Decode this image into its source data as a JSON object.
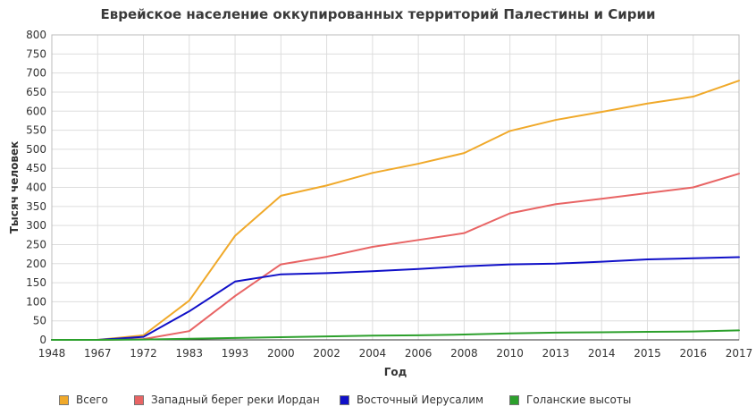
{
  "chart_data": {
    "type": "line",
    "title": "Еврейское население оккупированных территорий Палестины и Сирии",
    "xlabel": "Год",
    "ylabel": "Тысяч человек",
    "categories": [
      "1948",
      "1967",
      "1972",
      "1983",
      "1993",
      "2000",
      "2002",
      "2004",
      "2006",
      "2008",
      "2010",
      "2013",
      "2014",
      "2015",
      "2016",
      "2017"
    ],
    "ylim": [
      0,
      800
    ],
    "yticks": [
      0,
      50,
      100,
      150,
      200,
      250,
      300,
      350,
      400,
      450,
      500,
      550,
      600,
      650,
      700,
      750,
      800
    ],
    "grid": true,
    "legend_position": "bottom",
    "series": [
      {
        "name": "Всего",
        "color": "#f0a92a",
        "values": [
          0,
          0,
          12,
          103,
          273,
          378,
          405,
          438,
          462,
          490,
          548,
          577,
          598,
          620,
          638,
          680
        ]
      },
      {
        "name": "Западный берег реки Иордан",
        "color": "#e86464",
        "values": [
          0,
          0,
          2,
          23,
          115,
          198,
          218,
          244,
          262,
          280,
          332,
          356,
          370,
          385,
          400,
          436
        ]
      },
      {
        "name": "Восточный Иерусалим",
        "color": "#1010c8",
        "values": [
          0,
          0,
          8,
          75,
          153,
          172,
          175,
          180,
          186,
          193,
          198,
          200,
          205,
          211,
          214,
          217
        ]
      },
      {
        "name": "Голанские высоты",
        "color": "#2ca02c",
        "values": [
          0,
          0,
          1,
          3,
          5,
          7,
          9,
          11,
          12,
          14,
          17,
          19,
          20,
          21,
          22,
          25
        ]
      }
    ]
  }
}
